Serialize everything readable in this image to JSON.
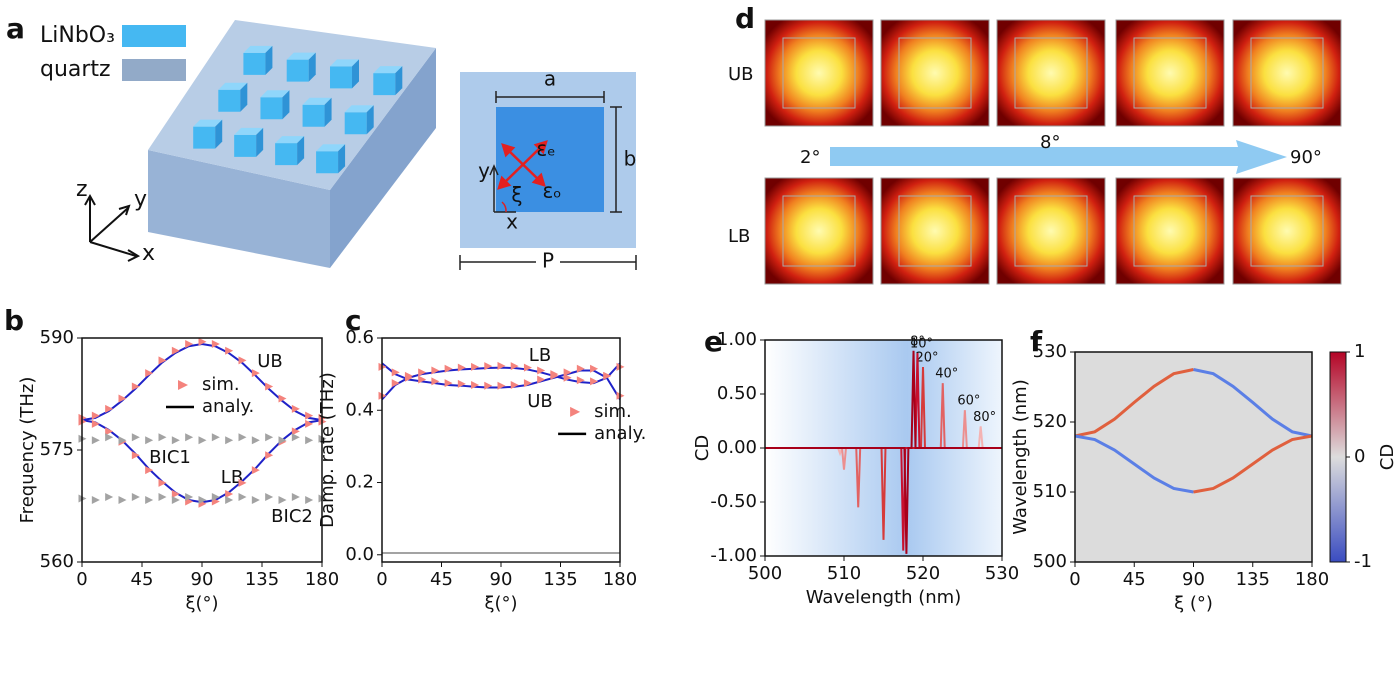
{
  "panel_a": {
    "panel": "a",
    "legend": [
      {
        "label": "LiNbO₃",
        "color": "#45b8f2"
      },
      {
        "label": "quartz",
        "color": "#92aac8"
      }
    ],
    "axes": [
      "z",
      "y",
      "x"
    ],
    "cell_labels": {
      "a": "a",
      "b": "b",
      "P": "P",
      "y": "y",
      "x": "x",
      "xi": "ξ",
      "eps_e": "εₑ",
      "eps_o": "εₒ"
    }
  },
  "panel_d": {
    "panel": "d",
    "rows": [
      "UB",
      "LB"
    ],
    "arrow_labels": [
      "2°",
      "8°",
      "90°"
    ]
  },
  "chart_data": [
    {
      "type": "line",
      "panel": "b",
      "xlabel": "ξ(°)",
      "ylabel": "Frequency (THz)",
      "x": [
        0,
        10,
        20,
        30,
        40,
        50,
        60,
        70,
        80,
        90,
        100,
        110,
        120,
        130,
        140,
        150,
        160,
        170,
        180
      ],
      "xlim": [
        0,
        180
      ],
      "xticks": [
        0,
        45,
        90,
        135,
        180
      ],
      "ylim": [
        560,
        590
      ],
      "yticks": [
        560,
        575,
        590
      ],
      "series": [
        {
          "name": "UB",
          "color": "#1f22c8",
          "values": [
            579,
            579.3,
            580.2,
            581.6,
            583.2,
            585,
            586.7,
            588,
            588.9,
            589.2,
            588.9,
            588,
            586.7,
            585,
            583.2,
            581.6,
            580.2,
            579.3,
            579
          ]
        },
        {
          "name": "LB",
          "color": "#1f22c8",
          "values": [
            579,
            578.7,
            577.7,
            576.3,
            574.5,
            572.5,
            570.8,
            569.3,
            568.3,
            568,
            568.3,
            569.3,
            570.8,
            572.5,
            574.5,
            576.3,
            577.7,
            578.7,
            579
          ]
        },
        {
          "color": "#f4837d",
          "marker": "triangle",
          "values": [
            579.3,
            579.6,
            580.5,
            581.9,
            583.5,
            585.3,
            587,
            588.3,
            589.2,
            589.5,
            589.2,
            588.3,
            587,
            585.3,
            583.5,
            581.9,
            580.5,
            579.6,
            579.3
          ]
        },
        {
          "color": "#f4837d",
          "marker": "triangle",
          "values": [
            578.8,
            578.5,
            577.5,
            576.1,
            574.3,
            572.3,
            570.6,
            569.1,
            568.1,
            567.8,
            568.1,
            569.1,
            570.6,
            572.3,
            574.3,
            576.1,
            577.5,
            578.5,
            578.8
          ]
        },
        {
          "name": "BIC1",
          "color": "#a3a3a3",
          "marker": "triangle",
          "values": [
            576.5,
            576.3,
            576.7,
            576.3,
            576.7,
            576.3,
            576.7,
            576.3,
            576.7,
            576.3,
            576.7,
            576.3,
            576.7,
            576.3,
            576.7,
            576.3,
            576.7,
            576.3,
            576.5
          ]
        },
        {
          "name": "BIC2",
          "color": "#a3a3a3",
          "marker": "triangle",
          "values": [
            568.5,
            568.3,
            568.7,
            568.3,
            568.7,
            568.3,
            568.7,
            568.3,
            568.7,
            568.3,
            568.7,
            568.3,
            568.7,
            568.3,
            568.7,
            568.3,
            568.7,
            568.3,
            568.5
          ]
        }
      ],
      "legend": [
        {
          "label": "sim.",
          "color": "#f4837d",
          "marker": "triangle"
        },
        {
          "label": "analy.",
          "color": "#000000",
          "marker": "line"
        }
      ],
      "legend_loc": "upper center"
    },
    {
      "type": "line",
      "panel": "c",
      "xlabel": "ξ(°)",
      "ylabel": "Damp. rate (THz)",
      "x": [
        0,
        10,
        20,
        30,
        40,
        50,
        60,
        70,
        80,
        90,
        100,
        110,
        120,
        130,
        140,
        150,
        160,
        170,
        180
      ],
      "xlim": [
        0,
        180
      ],
      "xticks": [
        0,
        45,
        90,
        135,
        180
      ],
      "ylim": [
        -0.02,
        0.6
      ],
      "yticks": [
        {
          "value": 0,
          "label": "0.0"
        },
        {
          "value": 0.2,
          "label": "0.2"
        },
        {
          "value": 0.4,
          "label": "0.4"
        },
        {
          "value": 0.6,
          "label": "0.6"
        }
      ],
      "series": [
        {
          "name": "LB",
          "color": "#1f22c8",
          "values": [
            0.43,
            0.47,
            0.49,
            0.5,
            0.505,
            0.51,
            0.513,
            0.515,
            0.517,
            0.518,
            0.517,
            0.513,
            0.505,
            0.495,
            0.485,
            0.478,
            0.475,
            0.49,
            0.53
          ]
        },
        {
          "name": "UB",
          "color": "#1f22c8",
          "values": [
            0.53,
            0.5,
            0.485,
            0.48,
            0.475,
            0.47,
            0.468,
            0.465,
            0.463,
            0.463,
            0.465,
            0.47,
            0.48,
            0.49,
            0.5,
            0.51,
            0.51,
            0.49,
            0.43
          ]
        },
        {
          "color": "#f4837d",
          "marker": "triangle",
          "values": [
            0.44,
            0.475,
            0.495,
            0.505,
            0.51,
            0.515,
            0.518,
            0.52,
            0.522,
            0.523,
            0.522,
            0.518,
            0.51,
            0.5,
            0.49,
            0.483,
            0.48,
            0.495,
            0.52
          ]
        },
        {
          "color": "#f4837d",
          "marker": "triangle",
          "values": [
            0.52,
            0.505,
            0.49,
            0.485,
            0.48,
            0.475,
            0.473,
            0.47,
            0.468,
            0.468,
            0.47,
            0.475,
            0.485,
            0.495,
            0.505,
            0.515,
            0.515,
            0.495,
            0.44
          ]
        },
        {
          "color": "#a3a3a3",
          "values": [
            0.005,
            0.005,
            0.005,
            0.005,
            0.005,
            0.005,
            0.005,
            0.005,
            0.005,
            0.005,
            0.005,
            0.005,
            0.005,
            0.005,
            0.005,
            0.005,
            0.005,
            0.005,
            0.005
          ]
        }
      ],
      "legend": [
        {
          "label": "sim.",
          "color": "#f4837d",
          "marker": "triangle"
        },
        {
          "label": "analy.",
          "color": "#000000",
          "marker": "line"
        }
      ],
      "legend_loc": "center right"
    },
    {
      "type": "line",
      "panel": "e",
      "xlabel": "Wavelength (nm)",
      "ylabel": "CD",
      "xlim": [
        500,
        530
      ],
      "xticks": [
        500,
        510,
        520,
        530
      ],
      "ylim": [
        -1,
        1
      ],
      "yticks": [
        {
          "value": -1,
          "label": "-1.00"
        },
        {
          "value": -0.5,
          "label": "-0.50"
        },
        {
          "value": 0,
          "label": "0.00"
        },
        {
          "value": 0.5,
          "label": "0.50"
        },
        {
          "value": 1,
          "label": "1.00"
        }
      ],
      "series": [
        {
          "name": "80°",
          "color": "#f4b3b3",
          "x": [
            500,
            509.25,
            509.5,
            509.75,
            527.05,
            527.3,
            527.55,
            530
          ],
          "values": [
            0,
            0,
            -0.05,
            0,
            0,
            0.2,
            0,
            0
          ]
        },
        {
          "name": "60°",
          "color": "#ec8f8f",
          "x": [
            500,
            509.75,
            510,
            510.25,
            525.05,
            525.3,
            525.55,
            530
          ],
          "values": [
            0,
            0,
            -0.2,
            0,
            0,
            0.35,
            0,
            0
          ]
        },
        {
          "name": "40°",
          "color": "#e26262",
          "x": [
            500,
            511.55,
            511.8,
            512.05,
            522.25,
            522.5,
            522.75,
            530
          ],
          "values": [
            0,
            0,
            -0.55,
            0,
            0,
            0.6,
            0,
            0
          ]
        },
        {
          "name": "20°",
          "color": "#d63a3a",
          "x": [
            500,
            514.75,
            515,
            515.25,
            519.75,
            520,
            520.25,
            530
          ],
          "values": [
            0,
            0,
            -0.85,
            0,
            0,
            0.75,
            0,
            0
          ]
        },
        {
          "name": "10°",
          "color": "#c8102e",
          "x": [
            500,
            517.25,
            517.5,
            517.75,
            519.05,
            519.3,
            519.55,
            530
          ],
          "values": [
            0,
            0,
            -0.95,
            0,
            0,
            0.88,
            0,
            0
          ]
        },
        {
          "name": "8°",
          "color": "#a8001a",
          "x": [
            500,
            517.65,
            517.9,
            518.15,
            518.55,
            518.8,
            519.05,
            530
          ],
          "values": [
            0,
            0,
            -0.98,
            0,
            0,
            0.9,
            0,
            0
          ]
        }
      ]
    },
    {
      "type": "line",
      "panel": "f",
      "xlabel": "ξ (°)",
      "ylabel": "Wavelength (nm)",
      "xlim": [
        0,
        180
      ],
      "xticks": [
        0,
        45,
        90,
        135,
        180
      ],
      "ylim": [
        500,
        530
      ],
      "yticks": [
        500,
        510,
        520,
        530
      ],
      "background": "#dcdcdc",
      "series": [
        {
          "color": "#e0603e",
          "x": [
            0,
            15,
            30,
            45,
            60,
            75,
            90
          ],
          "values": [
            518,
            518.6,
            520.4,
            522.8,
            525.1,
            526.9,
            527.5
          ]
        },
        {
          "color": "#5b7fe6",
          "x": [
            90,
            105,
            120,
            135,
            150,
            165,
            180
          ],
          "values": [
            527.5,
            526.9,
            525.1,
            522.8,
            520.4,
            518.6,
            518
          ]
        },
        {
          "color": "#5b7fe6",
          "x": [
            0,
            15,
            30,
            45,
            60,
            75,
            90
          ],
          "values": [
            518,
            517.5,
            516,
            514,
            512,
            510.5,
            510
          ]
        },
        {
          "color": "#e0603e",
          "x": [
            90,
            105,
            120,
            135,
            150,
            165,
            180
          ],
          "values": [
            510,
            510.5,
            512,
            514,
            516,
            517.5,
            518
          ]
        }
      ],
      "colorbar": {
        "label": "CD",
        "lim": [
          -1,
          1
        ],
        "ticks": [
          -1,
          0,
          1
        ],
        "colors": [
          "#3a4cc0",
          "#dddddd",
          "#b40426"
        ]
      }
    }
  ]
}
